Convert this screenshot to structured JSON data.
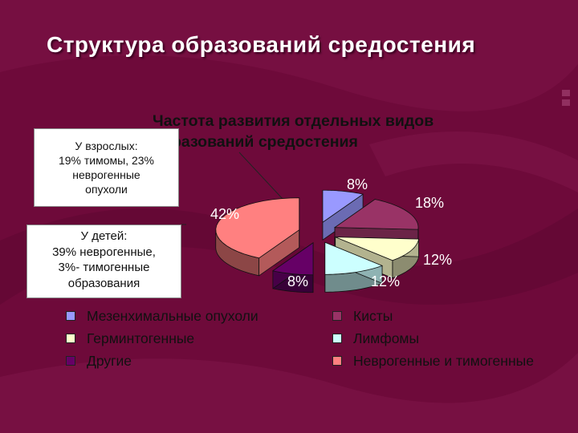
{
  "slide": {
    "title": "Структура образований средостения"
  },
  "notes": {
    "adults": {
      "lines": [
        "У взрослых:",
        "19% тимомы, 23%",
        "неврогенные",
        "опухоли"
      ]
    },
    "children": {
      "lines": [
        "У детей:",
        "39% неврогенные,",
        "3%- тимогенные",
        "образования"
      ]
    }
  },
  "chart_data": {
    "type": "pie",
    "title_lines": [
      "Частота развития отдельных видов",
      "образований средостения"
    ],
    "series": [
      {
        "name": "Мезенхимальные опухоли",
        "value": 8,
        "label": "8%",
        "color": "#9999ff"
      },
      {
        "name": "Кисты",
        "value": 18,
        "label": "18%",
        "color": "#993366"
      },
      {
        "name": "Герминтогенные",
        "value": 12,
        "label": "12%",
        "color": "#ffffcc"
      },
      {
        "name": "Лимфомы",
        "value": 12,
        "label": "12%",
        "color": "#ccffff"
      },
      {
        "name": "Другие",
        "value": 8,
        "label": "8%",
        "color": "#660066"
      },
      {
        "name": "Неврогенные и тимогенные",
        "value": 42,
        "label": "42%",
        "color": "#ff8080"
      }
    ],
    "legend_position": "bottom",
    "exploded": true,
    "three_d": true
  }
}
